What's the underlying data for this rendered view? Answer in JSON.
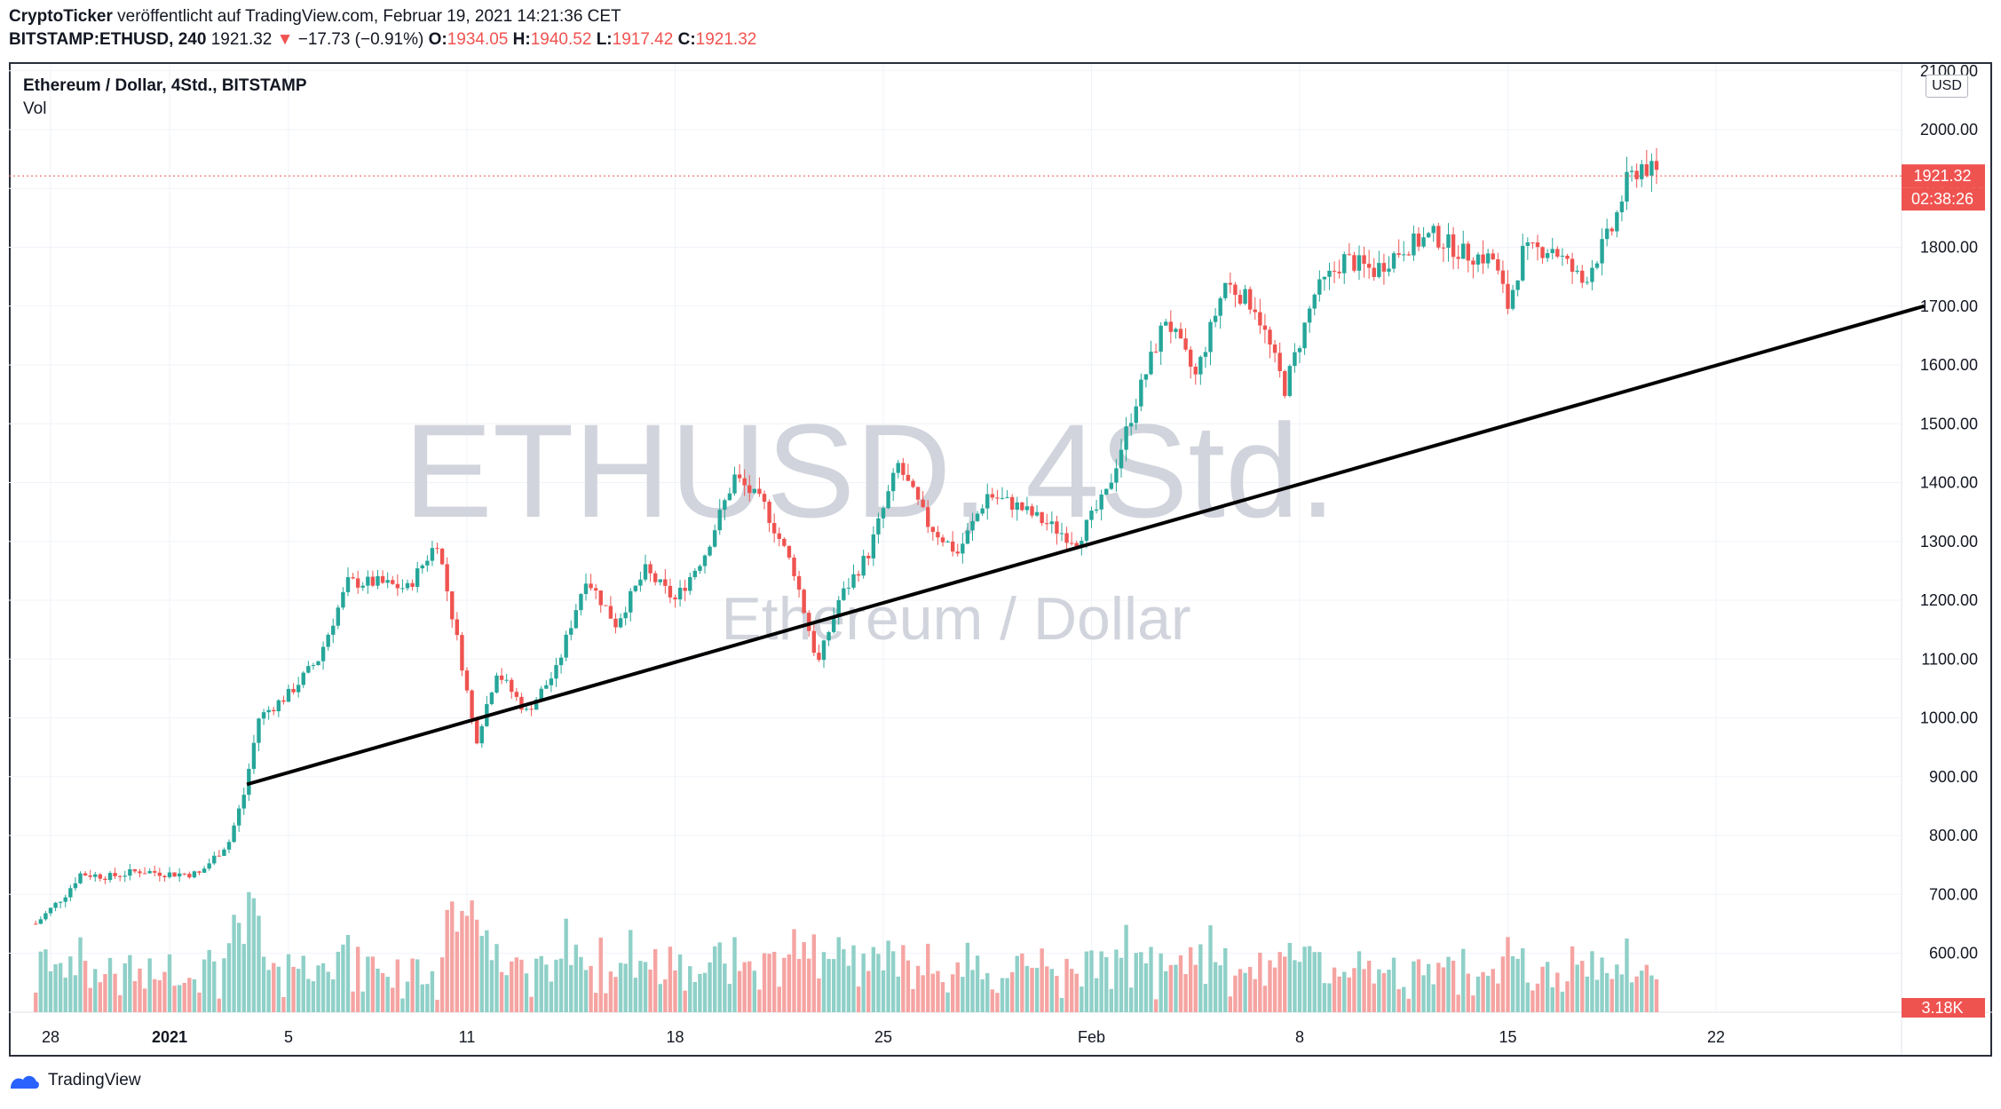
{
  "header": {
    "author": "CryptoTicker",
    "published_text": "veröffentlicht auf TradingView.com, Februar 19, 2021 14:21:36 CET",
    "symbol": "BITSTAMP:ETHUSD, 240",
    "last": "1921.32",
    "change": "−17.73 (−0.91%)",
    "o_label": "O:",
    "o_value": "1934.05",
    "h_label": "H:",
    "h_value": "1940.52",
    "l_label": "L:",
    "l_value": "1917.42",
    "c_label": "C:",
    "c_value": "1921.32"
  },
  "legend": {
    "title": "Ethereum / Dollar, 4Std., BITSTAMP",
    "indicator": "Vol"
  },
  "watermark": {
    "line1": "ETHUSD, 4Std.",
    "line2": "Ethereum / Dollar"
  },
  "footer": {
    "brand": "TradingView"
  },
  "price_axis": {
    "currency": "USD",
    "last_price_label": "1921.32",
    "countdown_label": "02:38:26",
    "volume_label": "3.18K"
  },
  "colors": {
    "up": "#26a69a",
    "down": "#ef5350",
    "vol_up": "#8fd0c8",
    "vol_down": "#f5a4a2",
    "trendline": "#000000",
    "grid": "#f0f3fa",
    "watermark": "#d1d4dc"
  },
  "chart_data": {
    "type": "candlestick",
    "symbol": "BITSTAMP:ETHUSD",
    "interval": "4Std.",
    "y_axis": {
      "min": 550,
      "max": 2100,
      "ticks": [
        600,
        700,
        800,
        900,
        1000,
        1100,
        1200,
        1300,
        1400,
        1500,
        1600,
        1700,
        1800,
        1900,
        2000,
        2100
      ]
    },
    "y_tick_labels": [
      "600.00",
      "700.00",
      "800.00",
      "900.00",
      "1000.00",
      "1100.00",
      "1200.00",
      "1300.00",
      "1400.00",
      "1500.00",
      "1600.00",
      "1700.00",
      "1800.00",
      "1900.00",
      "2000.00",
      "2100.00"
    ],
    "x_axis": {
      "start_day": 27.5,
      "end_day": 57.2,
      "ticks": [
        {
          "day": 28,
          "label": "28",
          "bold": false
        },
        {
          "day": 32,
          "label": "2021",
          "bold": true
        },
        {
          "day": 36,
          "label": "5",
          "bold": false
        },
        {
          "day": 42,
          "label": "11",
          "bold": false
        },
        {
          "day": 49,
          "label": "18",
          "bold": false
        },
        {
          "day": 56,
          "label": "25",
          "bold": false
        },
        {
          "day": 63,
          "label": "Feb",
          "bold": false
        },
        {
          "day": 70,
          "label": "8",
          "bold": false
        },
        {
          "day": 77,
          "label": "15",
          "bold": false
        },
        {
          "day": 84,
          "label": "22",
          "bold": false
        }
      ]
    },
    "close_path": [
      {
        "day": 27.5,
        "close": 650
      },
      {
        "day": 28.5,
        "close": 700
      },
      {
        "day": 29.0,
        "close": 735
      },
      {
        "day": 30.0,
        "close": 730
      },
      {
        "day": 31.0,
        "close": 740
      },
      {
        "day": 32.0,
        "close": 735
      },
      {
        "day": 33.0,
        "close": 735
      },
      {
        "day": 34.0,
        "close": 790
      },
      {
        "day": 34.5,
        "close": 870
      },
      {
        "day": 35.0,
        "close": 1000
      },
      {
        "day": 36.0,
        "close": 1040
      },
      {
        "day": 37.0,
        "close": 1100
      },
      {
        "day": 38.0,
        "close": 1230
      },
      {
        "day": 39.0,
        "close": 1230
      },
      {
        "day": 40.0,
        "close": 1220
      },
      {
        "day": 41.0,
        "close": 1300
      },
      {
        "day": 41.8,
        "close": 1100
      },
      {
        "day": 42.3,
        "close": 960
      },
      {
        "day": 43.0,
        "close": 1080
      },
      {
        "day": 44.0,
        "close": 1010
      },
      {
        "day": 45.0,
        "close": 1080
      },
      {
        "day": 46.0,
        "close": 1240
      },
      {
        "day": 47.0,
        "close": 1160
      },
      {
        "day": 48.0,
        "close": 1250
      },
      {
        "day": 49.0,
        "close": 1200
      },
      {
        "day": 50.0,
        "close": 1280
      },
      {
        "day": 51.0,
        "close": 1410
      },
      {
        "day": 52.0,
        "close": 1360
      },
      {
        "day": 53.0,
        "close": 1250
      },
      {
        "day": 53.8,
        "close": 1090
      },
      {
        "day": 54.5,
        "close": 1200
      },
      {
        "day": 55.5,
        "close": 1280
      },
      {
        "day": 56.5,
        "close": 1430
      },
      {
        "day": 57.5,
        "close": 1330
      },
      {
        "day": 58.5,
        "close": 1280
      },
      {
        "day": 59.5,
        "close": 1380
      },
      {
        "day": 60.5,
        "close": 1360
      },
      {
        "day": 61.5,
        "close": 1330
      },
      {
        "day": 62.5,
        "close": 1300
      },
      {
        "day": 63.5,
        "close": 1380
      },
      {
        "day": 64.5,
        "close": 1540
      },
      {
        "day": 65.5,
        "close": 1680
      },
      {
        "day": 66.5,
        "close": 1580
      },
      {
        "day": 67.5,
        "close": 1740
      },
      {
        "day": 68.5,
        "close": 1700
      },
      {
        "day": 69.5,
        "close": 1560
      },
      {
        "day": 70.5,
        "close": 1720
      },
      {
        "day": 71.5,
        "close": 1780
      },
      {
        "day": 72.5,
        "close": 1760
      },
      {
        "day": 73.5,
        "close": 1800
      },
      {
        "day": 74.5,
        "close": 1820
      },
      {
        "day": 75.5,
        "close": 1790
      },
      {
        "day": 76.5,
        "close": 1780
      },
      {
        "day": 77.0,
        "close": 1700
      },
      {
        "day": 77.5,
        "close": 1790
      },
      {
        "day": 78.5,
        "close": 1800
      },
      {
        "day": 79.5,
        "close": 1740
      },
      {
        "day": 80.5,
        "close": 1830
      },
      {
        "day": 81.0,
        "close": 1910
      },
      {
        "day": 81.5,
        "close": 1940
      },
      {
        "day": 82.1,
        "close": 1921.32
      }
    ],
    "trendline": {
      "from": {
        "day": 34.6,
        "price": 887
      },
      "to": {
        "day": 91.0,
        "price": 1700
      }
    },
    "last_price": 1921.32,
    "ohlc_last_bar": {
      "open": 1934.05,
      "high": 1940.52,
      "low": 1917.42,
      "close": 1921.32
    },
    "volume_last": "3.18K"
  }
}
